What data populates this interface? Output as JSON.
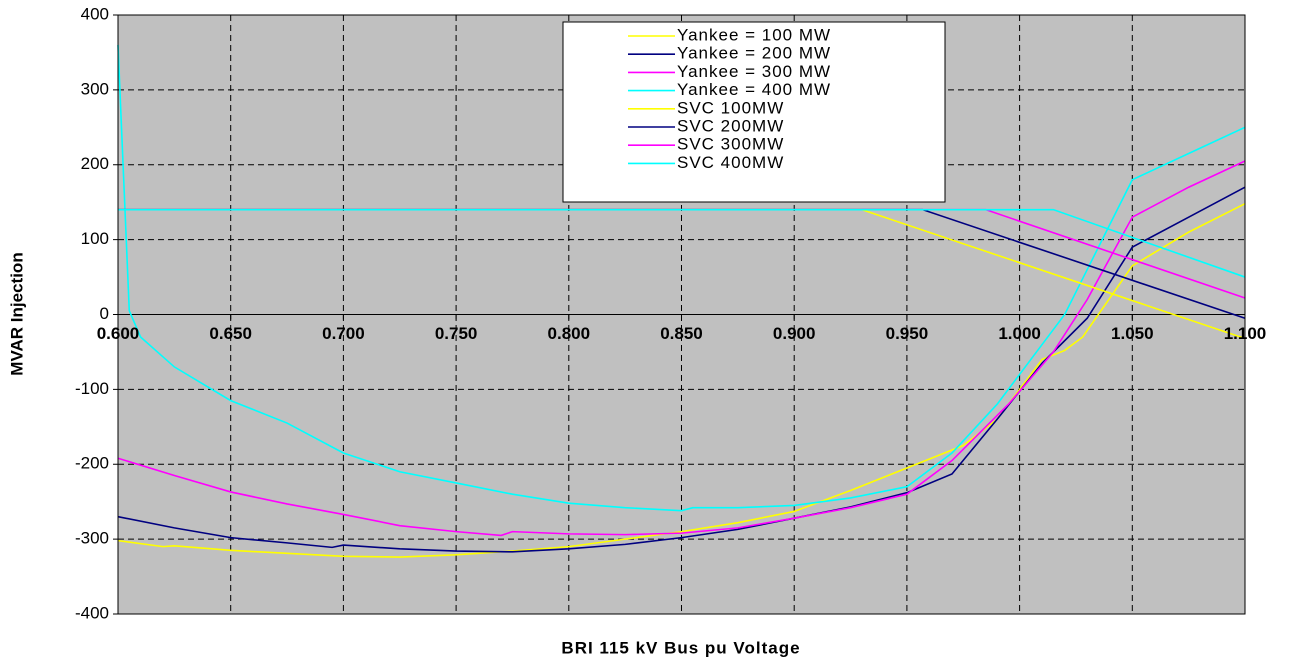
{
  "chart_data": {
    "type": "line",
    "xlabel": "BRI 115 kV Bus pu Voltage",
    "ylabel": "MVAR Injection",
    "xlim": [
      0.6,
      1.1
    ],
    "ylim": [
      -400,
      400
    ],
    "xticks": [
      {
        "value": 0.6,
        "label": "0.600"
      },
      {
        "value": 0.65,
        "label": "0.650"
      },
      {
        "value": 0.7,
        "label": "0.700"
      },
      {
        "value": 0.75,
        "label": "0.750"
      },
      {
        "value": 0.8,
        "label": "0.800"
      },
      {
        "value": 0.85,
        "label": "0.850"
      },
      {
        "value": 0.9,
        "label": "0.900"
      },
      {
        "value": 0.95,
        "label": "0.950"
      },
      {
        "value": 1.0,
        "label": "1.000"
      },
      {
        "value": 1.05,
        "label": "1.050"
      },
      {
        "value": 1.1,
        "label": "1.100"
      }
    ],
    "yticks": [
      -400,
      -300,
      -200,
      -100,
      0,
      100,
      200,
      300,
      400
    ],
    "grid": true,
    "series": [
      {
        "name": "Yankee = 100 MW",
        "color": "#ffff00",
        "x": [
          0.6,
          0.62,
          0.625,
          0.65,
          0.675,
          0.7,
          0.725,
          0.75,
          0.775,
          0.8,
          0.825,
          0.85,
          0.875,
          0.9,
          0.925,
          0.95,
          0.975,
          0.99,
          1.01,
          1.02,
          1.028,
          1.05,
          1.075,
          1.1
        ],
        "values": [
          -302,
          -310,
          -309,
          -315,
          -319,
          -323,
          -324,
          -321,
          -316,
          -310,
          -300,
          -290,
          -278,
          -263,
          -235,
          -205,
          -175,
          -140,
          -60,
          -48,
          -30,
          65,
          110,
          148
        ]
      },
      {
        "name": "Yankee = 200 MW",
        "color": "#000080",
        "x": [
          0.6,
          0.625,
          0.65,
          0.675,
          0.695,
          0.7,
          0.725,
          0.75,
          0.775,
          0.8,
          0.825,
          0.85,
          0.875,
          0.9,
          0.925,
          0.95,
          0.97,
          0.99,
          1.01,
          1.03,
          1.05,
          1.075,
          1.1
        ],
        "values": [
          -270,
          -285,
          -298,
          -305,
          -311,
          -308,
          -313,
          -316,
          -317,
          -313,
          -307,
          -298,
          -287,
          -272,
          -257,
          -238,
          -213,
          -140,
          -65,
          -5,
          90,
          130,
          170
        ]
      },
      {
        "name": "Yankee = 300 MW",
        "color": "#ff00ff",
        "x": [
          0.6,
          0.625,
          0.65,
          0.675,
          0.7,
          0.725,
          0.75,
          0.77,
          0.775,
          0.8,
          0.825,
          0.85,
          0.875,
          0.9,
          0.925,
          0.95,
          0.97,
          0.995,
          1.015,
          1.03,
          1.05,
          1.075,
          1.1
        ],
        "values": [
          -192,
          -215,
          -237,
          -253,
          -267,
          -282,
          -290,
          -295,
          -290,
          -293,
          -294,
          -292,
          -285,
          -272,
          -258,
          -240,
          -195,
          -120,
          -50,
          20,
          130,
          170,
          205
        ]
      },
      {
        "name": "Yankee = 400 MW",
        "color": "#00ffff",
        "x": [
          0.6,
          0.605,
          0.61,
          0.625,
          0.65,
          0.675,
          0.7,
          0.725,
          0.75,
          0.775,
          0.8,
          0.825,
          0.85,
          0.855,
          0.875,
          0.9,
          0.925,
          0.95,
          0.97,
          0.99,
          1.005,
          1.02,
          1.03,
          1.04,
          1.05,
          1.075,
          1.1
        ],
        "values": [
          360,
          5,
          -30,
          -70,
          -115,
          -145,
          -185,
          -210,
          -225,
          -240,
          -252,
          -258,
          -262,
          -258,
          -258,
          -255,
          -245,
          -230,
          -185,
          -120,
          -60,
          0,
          60,
          120,
          180,
          215,
          250
        ]
      },
      {
        "name": "SVC 100MW",
        "color": "#ffff00",
        "x": [
          0.6,
          0.93,
          1.1
        ],
        "values": [
          140,
          140,
          -32
        ]
      },
      {
        "name": "SVC 200MW",
        "color": "#000080",
        "x": [
          0.6,
          0.957,
          1.1
        ],
        "values": [
          140,
          140,
          -5
        ]
      },
      {
        "name": "SVC 300MW",
        "color": "#ff00ff",
        "x": [
          0.6,
          0.985,
          1.1
        ],
        "values": [
          140,
          140,
          22
        ]
      },
      {
        "name": "SVC 400MW",
        "color": "#00ffff",
        "x": [
          0.6,
          1.015,
          1.1
        ],
        "values": [
          140,
          140,
          50
        ]
      }
    ]
  }
}
